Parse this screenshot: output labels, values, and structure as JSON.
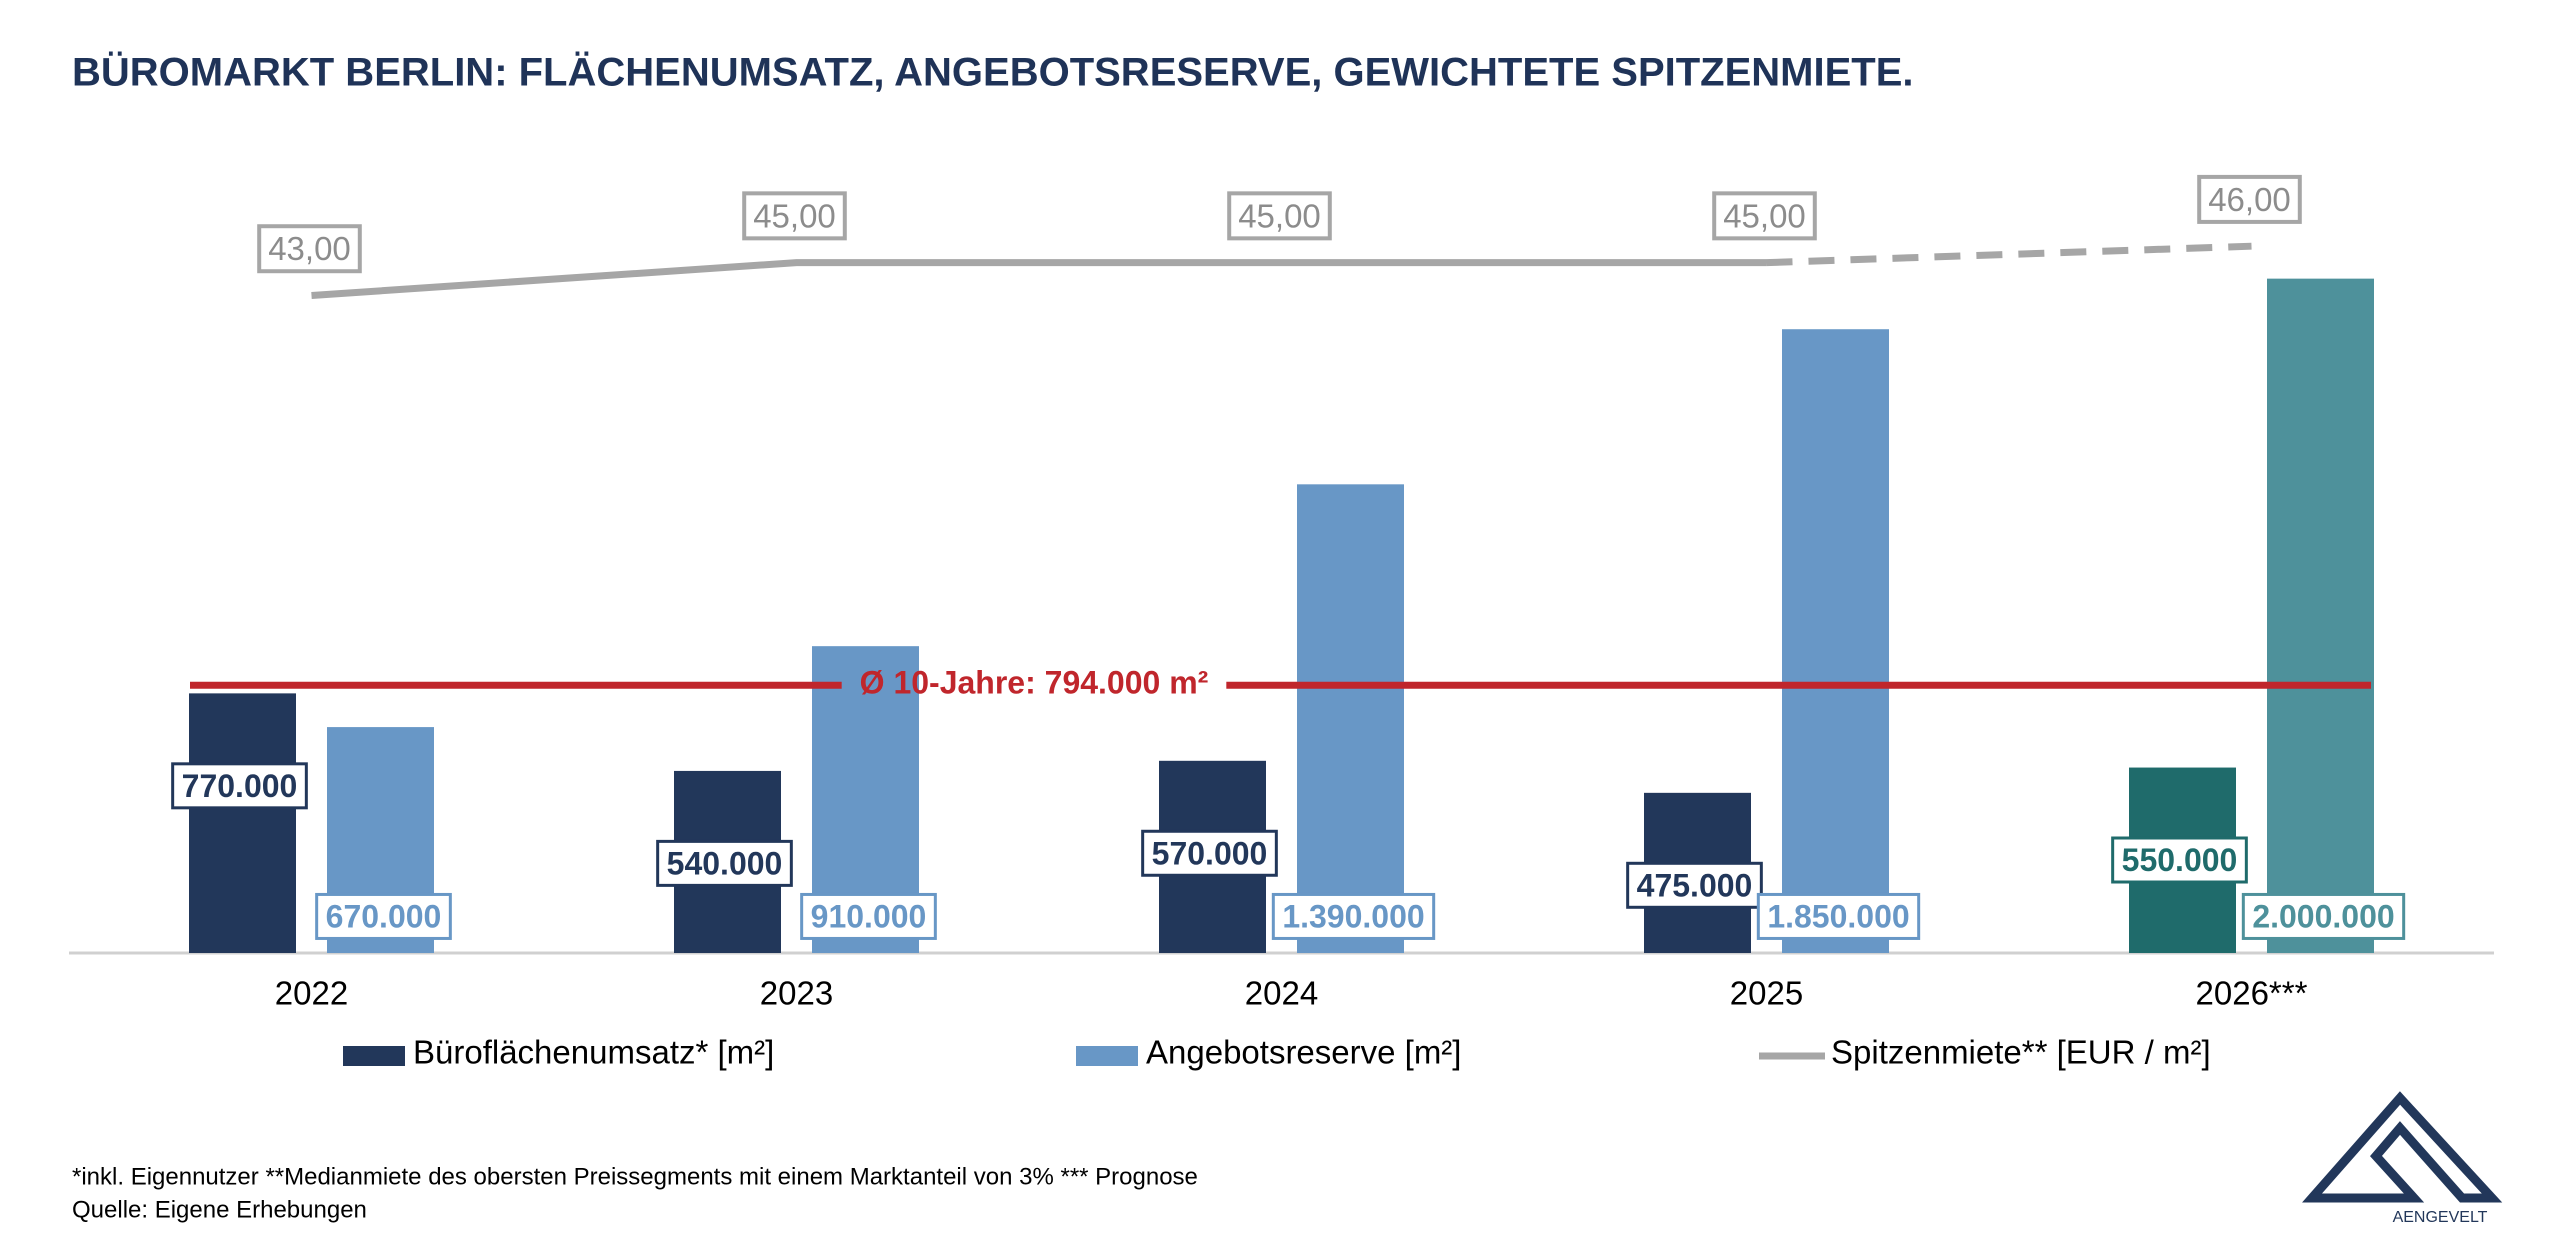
{
  "chart_data": {
    "type": "bar",
    "title": "BÜROMARKT BERLIN: FLÄCHENUMSATZ, ANGEBOTSRESERVE, GEWICHTETE SPITZENMIETE.",
    "categories": [
      "2022",
      "2023",
      "2024",
      "2025",
      "2026***"
    ],
    "forecast_index": 4,
    "forecast_line_from": 3,
    "series": [
      {
        "name": "Büroflächenumsatz* [m²]",
        "color": "#22375a",
        "forecast_color": "#1f6b6b",
        "values": [
          770000,
          540000,
          570000,
          475000,
          550000
        ],
        "value_labels": [
          "770.000",
          "540.000",
          "570.000",
          "475.000",
          "550.000"
        ]
      },
      {
        "name": "Angebotsreserve [m²]",
        "color": "#6897c6",
        "forecast_color": "#4e919b",
        "values": [
          670000,
          910000,
          1390000,
          1850000,
          2000000
        ],
        "value_labels": [
          "670.000",
          "910.000",
          "1.390.000",
          "1.850.000",
          "2.000.000"
        ]
      },
      {
        "name": "Spitzenmiete** [EUR / m²]",
        "color": "#a6a6a6",
        "type": "line",
        "axis": "y2",
        "values": [
          43,
          45,
          45,
          45,
          46
        ],
        "value_labels": [
          "43,00",
          "45,00",
          "45,00",
          "45,00",
          "46,00"
        ]
      }
    ],
    "ylim": [
      0,
      2340000
    ],
    "y2lim": [
      3,
      51
    ],
    "reference_line": {
      "value": 794000,
      "label": "Ø 10-Jahre: 794.000 m²",
      "color": "#c0262c"
    },
    "footnotes": [
      "*inkl. Eigennutzer **Medianmiete des obersten Preissegments mit einem Marktanteil von 3% *** Prognose",
      "Quelle: Eigene Erhebungen"
    ],
    "logo": "AENGEVELT"
  }
}
